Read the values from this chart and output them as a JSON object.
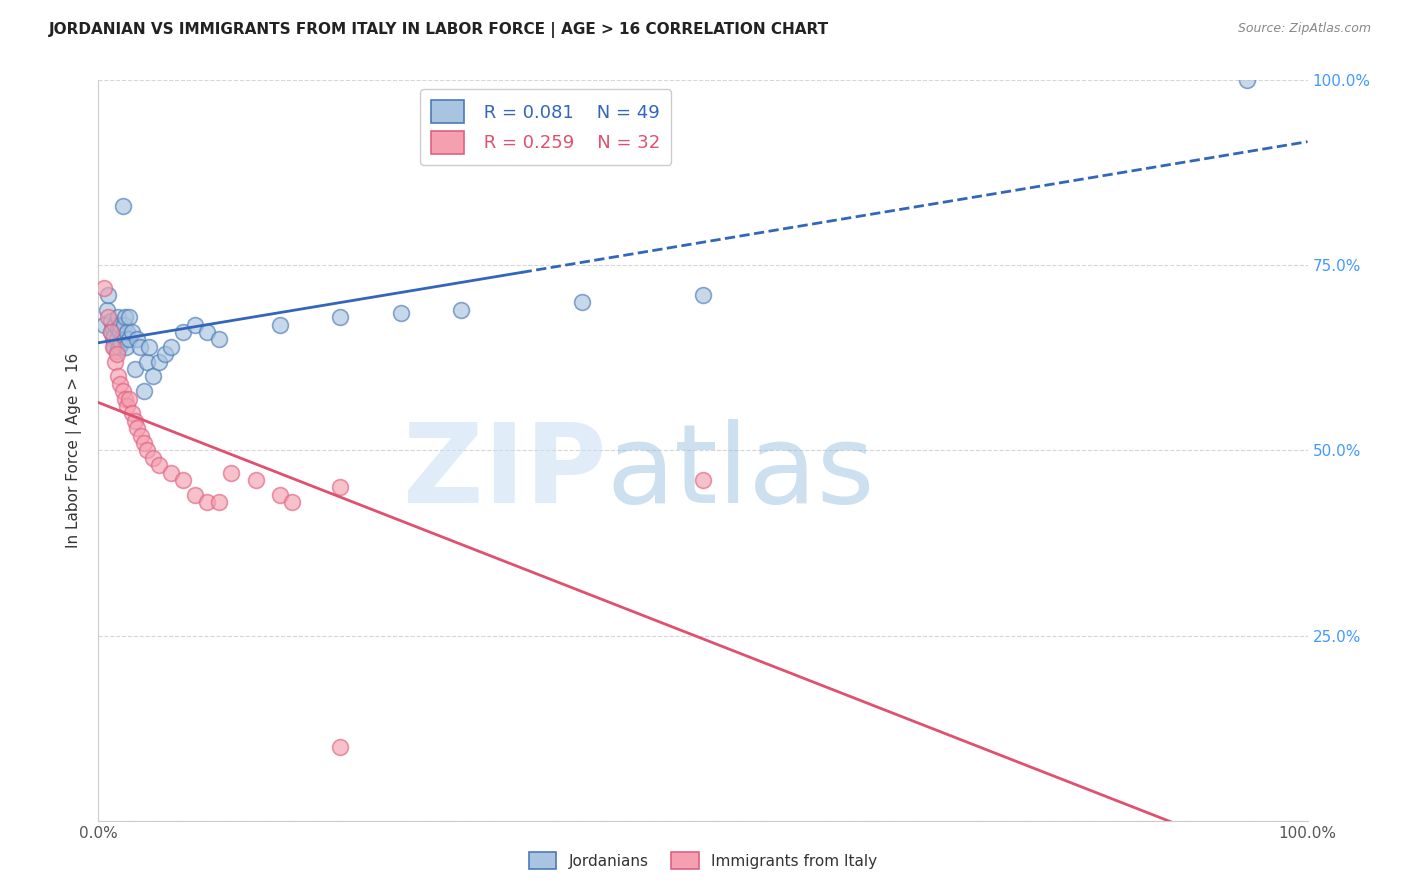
{
  "title": "JORDANIAN VS IMMIGRANTS FROM ITALY IN LABOR FORCE | AGE > 16 CORRELATION CHART",
  "source": "Source: ZipAtlas.com",
  "ylabel": "In Labor Force | Age > 16",
  "xlim": [
    0.0,
    1.0
  ],
  "ylim": [
    0.0,
    1.0
  ],
  "blue_R": "0.081",
  "blue_N": "49",
  "pink_R": "0.259",
  "pink_N": "32",
  "blue_scatter_color": "#A8C4E0",
  "blue_edge_color": "#4A7AB5",
  "pink_scatter_color": "#F4A0B0",
  "pink_edge_color": "#E06080",
  "blue_line_color": "#3366BB",
  "pink_line_color": "#E05070",
  "right_tick_color": "#4499FF",
  "jordanians_x": [
    0.005,
    0.007,
    0.008,
    0.01,
    0.01,
    0.012,
    0.012,
    0.013,
    0.013,
    0.014,
    0.015,
    0.015,
    0.016,
    0.016,
    0.017,
    0.018,
    0.018,
    0.019,
    0.02,
    0.02,
    0.021,
    0.022,
    0.022,
    0.023,
    0.024,
    0.025,
    0.025,
    0.028,
    0.03,
    0.032,
    0.034,
    0.038,
    0.04,
    0.042,
    0.045,
    0.05,
    0.055,
    0.06,
    0.07,
    0.08,
    0.09,
    0.1,
    0.15,
    0.2,
    0.25,
    0.3,
    0.4,
    0.5,
    0.95
  ],
  "jordanians_y": [
    0.67,
    0.69,
    0.71,
    0.66,
    0.675,
    0.65,
    0.665,
    0.64,
    0.655,
    0.67,
    0.635,
    0.65,
    0.665,
    0.68,
    0.64,
    0.66,
    0.67,
    0.645,
    0.655,
    0.83,
    0.67,
    0.65,
    0.68,
    0.64,
    0.66,
    0.65,
    0.68,
    0.66,
    0.61,
    0.65,
    0.64,
    0.58,
    0.62,
    0.64,
    0.6,
    0.62,
    0.63,
    0.64,
    0.66,
    0.67,
    0.66,
    0.65,
    0.67,
    0.68,
    0.685,
    0.69,
    0.7,
    0.71,
    1.0
  ],
  "italy_x": [
    0.005,
    0.008,
    0.01,
    0.012,
    0.014,
    0.015,
    0.016,
    0.018,
    0.02,
    0.022,
    0.024,
    0.025,
    0.028,
    0.03,
    0.032,
    0.035,
    0.038,
    0.04,
    0.045,
    0.05,
    0.06,
    0.07,
    0.08,
    0.09,
    0.1,
    0.11,
    0.13,
    0.15,
    0.16,
    0.2,
    0.5,
    0.2
  ],
  "italy_y": [
    0.72,
    0.68,
    0.66,
    0.64,
    0.62,
    0.63,
    0.6,
    0.59,
    0.58,
    0.57,
    0.56,
    0.57,
    0.55,
    0.54,
    0.53,
    0.52,
    0.51,
    0.5,
    0.49,
    0.48,
    0.47,
    0.46,
    0.44,
    0.43,
    0.43,
    0.47,
    0.46,
    0.44,
    0.43,
    0.45,
    0.46,
    0.1
  ]
}
